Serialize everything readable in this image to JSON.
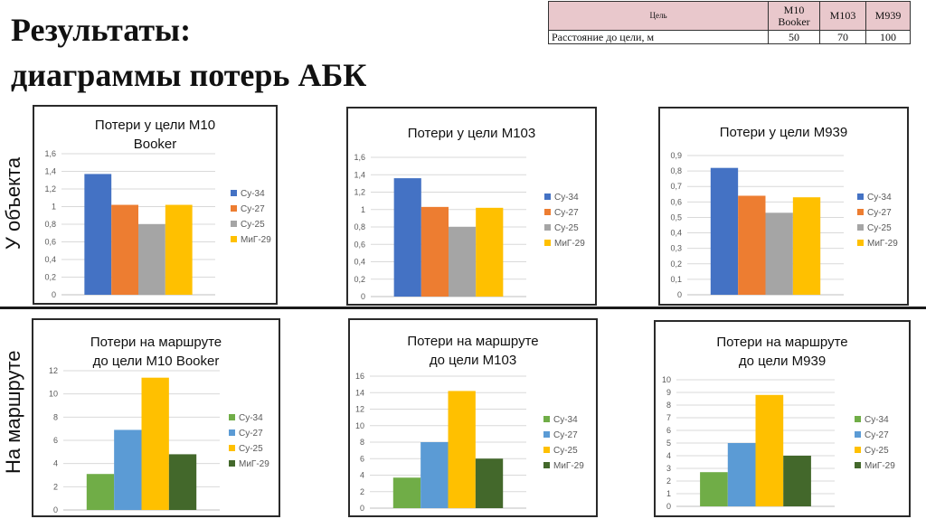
{
  "heading": {
    "line1": "Результаты:",
    "line2": "диаграммы потерь АБК"
  },
  "info_table": {
    "header": [
      "Цель",
      "М10 Booker",
      "М103",
      "М939"
    ],
    "row_label": "Расстояние до цели, м",
    "row_values": [
      "50",
      "70",
      "100"
    ]
  },
  "row_labels": {
    "top": "У объекта",
    "bottom": "На маршруте"
  },
  "colors": {
    "su34_top": "#4472c4",
    "su27_top": "#ed7d31",
    "su25_top": "#a5a5a5",
    "mig29_top": "#ffc000",
    "su34_bottom": "#70ad47",
    "su27_bottom": "#5b9bd5",
    "su25_bottom": "#ffc000",
    "mig29_bottom": "#43682b"
  },
  "chart_data": [
    {
      "type": "bar",
      "title_lines": [
        "Потери у цели М10",
        "Booker"
      ],
      "categories": [
        "Су-34",
        "Су-27",
        "Су-25",
        "МиГ-29"
      ],
      "values": [
        1.37,
        1.02,
        0.8,
        1.02
      ],
      "ylim": [
        0,
        1.6
      ],
      "yticks": [
        "0",
        "0,2",
        "0,4",
        "0,6",
        "0,8",
        "1",
        "1,2",
        "1,4",
        "1,6"
      ],
      "grid": true,
      "legend_position": "right",
      "legend_labels": [
        "Су-34",
        "Су-27",
        "Су-25",
        "МиГ-29"
      ],
      "colors": [
        "#4472c4",
        "#ed7d31",
        "#a5a5a5",
        "#ffc000"
      ]
    },
    {
      "type": "bar",
      "title_lines": [
        "Потери у цели М103"
      ],
      "categories": [
        "Су-34",
        "Су-27",
        "Су-25",
        "МиГ-29"
      ],
      "values": [
        1.36,
        1.03,
        0.8,
        1.02
      ],
      "ylim": [
        0,
        1.6
      ],
      "yticks": [
        "0",
        "0,2",
        "0,4",
        "0,6",
        "0,8",
        "1",
        "1,2",
        "1,4",
        "1,6"
      ],
      "grid": true,
      "legend_position": "right",
      "legend_labels": [
        "Су-34",
        "Су-27",
        "Су-25",
        "МиГ-29"
      ],
      "colors": [
        "#4472c4",
        "#ed7d31",
        "#a5a5a5",
        "#ffc000"
      ]
    },
    {
      "type": "bar",
      "title_lines": [
        "Потери у цели М939"
      ],
      "categories": [
        "Су-34",
        "Су-27",
        "Су-25",
        "МиГ-29"
      ],
      "values": [
        0.82,
        0.64,
        0.53,
        0.63
      ],
      "ylim": [
        0,
        0.9
      ],
      "yticks": [
        "0",
        "0,1",
        "0,2",
        "0,3",
        "0,4",
        "0,5",
        "0,6",
        "0,7",
        "0,8",
        "0,9"
      ],
      "grid": true,
      "legend_position": "right",
      "legend_labels": [
        "Су-34",
        "Су-27",
        "Су-25",
        "МиГ-29"
      ],
      "colors": [
        "#4472c4",
        "#ed7d31",
        "#a5a5a5",
        "#ffc000"
      ]
    },
    {
      "type": "bar",
      "title_lines": [
        "Потери на маршруте",
        "до цели М10 Booker"
      ],
      "categories": [
        "Су-34",
        "Су-27",
        "Су-25",
        "МиГ-29"
      ],
      "values": [
        3.1,
        6.9,
        11.4,
        4.8
      ],
      "ylim": [
        0,
        12
      ],
      "yticks": [
        "0",
        "2",
        "4",
        "6",
        "8",
        "10",
        "12"
      ],
      "grid": true,
      "legend_position": "right",
      "legend_labels": [
        "Су-34",
        "Су-27",
        "Су-25",
        "МиГ-29"
      ],
      "colors": [
        "#70ad47",
        "#5b9bd5",
        "#ffc000",
        "#43682b"
      ]
    },
    {
      "type": "bar",
      "title_lines": [
        "Потери на маршруте",
        "до цели М103"
      ],
      "categories": [
        "Су-34",
        "Су-27",
        "Су-25",
        "МиГ-29"
      ],
      "values": [
        3.7,
        8.0,
        14.2,
        6.0
      ],
      "ylim": [
        0,
        16
      ],
      "yticks": [
        "0",
        "2",
        "4",
        "6",
        "8",
        "10",
        "12",
        "14",
        "16"
      ],
      "grid": true,
      "legend_position": "right",
      "legend_labels": [
        "Су-34",
        "Су-27",
        "Су-25",
        "МиГ-29"
      ],
      "colors": [
        "#70ad47",
        "#5b9bd5",
        "#ffc000",
        "#43682b"
      ]
    },
    {
      "type": "bar",
      "title_lines": [
        "Потери на маршруте",
        "до цели М939"
      ],
      "categories": [
        "Су-34",
        "Су-27",
        "Су-25",
        "МиГ-29"
      ],
      "values": [
        2.7,
        5.0,
        8.8,
        4.0
      ],
      "ylim": [
        0,
        10
      ],
      "yticks": [
        "0",
        "1",
        "2",
        "3",
        "4",
        "5",
        "6",
        "7",
        "8",
        "9",
        "10"
      ],
      "grid": true,
      "legend_position": "right",
      "legend_labels": [
        "Су-34",
        "Су-27",
        "Су-25",
        "МиГ-29"
      ],
      "colors": [
        "#70ad47",
        "#5b9bd5",
        "#ffc000",
        "#43682b"
      ]
    }
  ]
}
